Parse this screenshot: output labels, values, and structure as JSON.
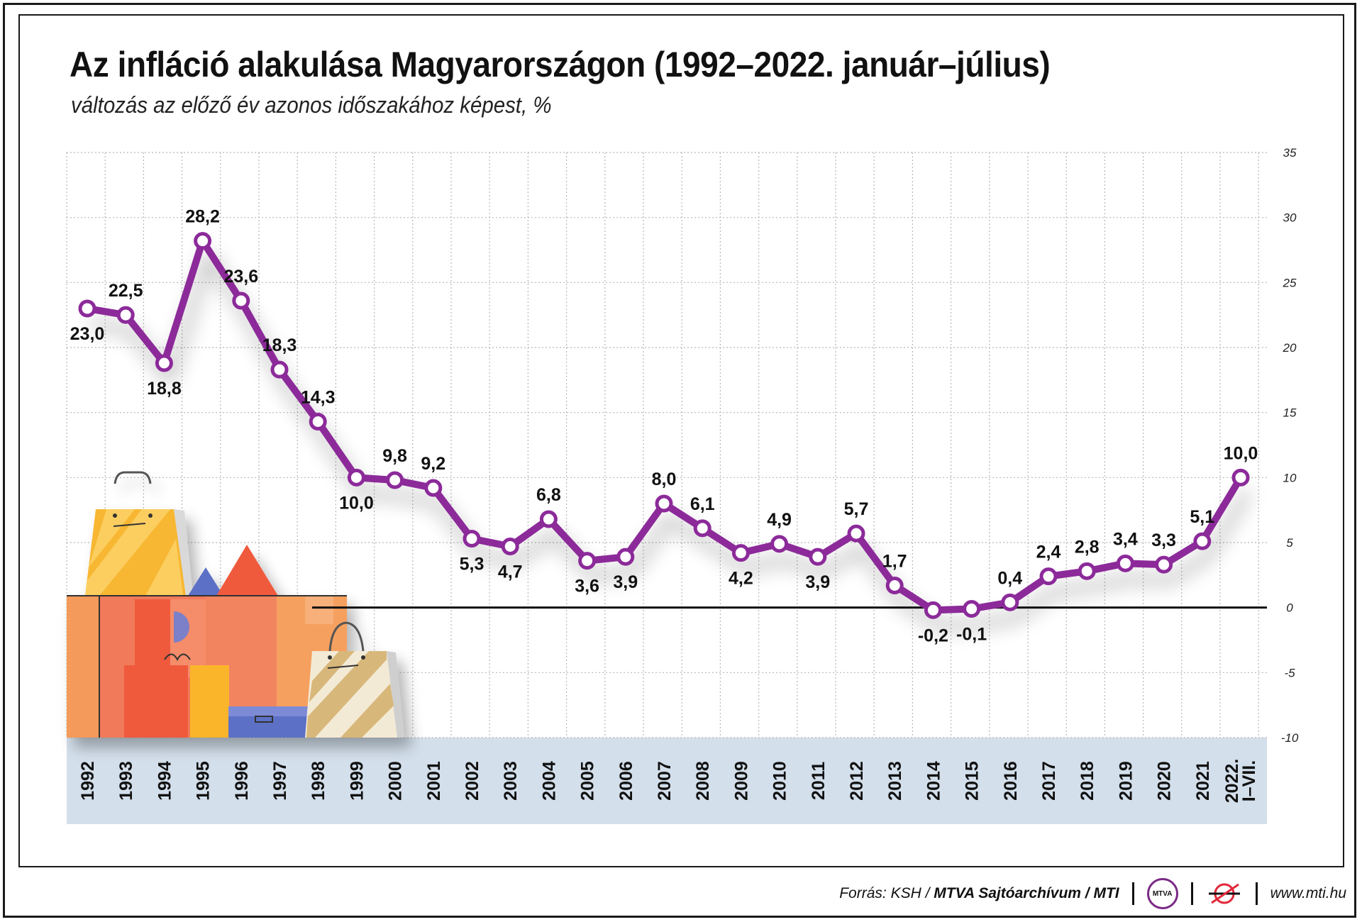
{
  "title": "Az infláció alakulása Magyarországon (1992–2022. január–július)",
  "subtitle": "változás az előző év azonos időszakához képest, %",
  "footer": {
    "source_prefix": "Forrás: KSH / ",
    "source_bold": "MTVA Sajtóarchívum / MTI",
    "logo_text": "MTVA",
    "website": "www.mti.hu"
  },
  "colors": {
    "line": "#8c2a9a",
    "x_band": "#d3dfeb",
    "grid": "#b8b8b8",
    "zero_line": "#111111"
  },
  "chart_data": {
    "type": "line",
    "title": "Az infláció alakulása Magyarországon (1992–2022. január–július)",
    "subtitle": "változás az előző év azonos időszakához képest, %",
    "categories": [
      "1992",
      "1993",
      "1994",
      "1995",
      "1996",
      "1997",
      "1998",
      "1999",
      "2000",
      "2001",
      "2002",
      "2003",
      "2004",
      "2005",
      "2006",
      "2007",
      "2008",
      "2009",
      "2010",
      "2011",
      "2012",
      "2013",
      "2014",
      "2015",
      "2016",
      "2017",
      "2018",
      "2019",
      "2020",
      "2021",
      "2022. I–VII."
    ],
    "category_lines": [
      [
        "1992"
      ],
      [
        "1993"
      ],
      [
        "1994"
      ],
      [
        "1995"
      ],
      [
        "1996"
      ],
      [
        "1997"
      ],
      [
        "1998"
      ],
      [
        "1999"
      ],
      [
        "2000"
      ],
      [
        "2001"
      ],
      [
        "2002"
      ],
      [
        "2003"
      ],
      [
        "2004"
      ],
      [
        "2005"
      ],
      [
        "2006"
      ],
      [
        "2007"
      ],
      [
        "2008"
      ],
      [
        "2009"
      ],
      [
        "2010"
      ],
      [
        "2011"
      ],
      [
        "2012"
      ],
      [
        "2013"
      ],
      [
        "2014"
      ],
      [
        "2015"
      ],
      [
        "2016"
      ],
      [
        "2017"
      ],
      [
        "2018"
      ],
      [
        "2019"
      ],
      [
        "2020"
      ],
      [
        "2021"
      ],
      [
        "2022.",
        "I–VII."
      ]
    ],
    "series": [
      {
        "values": [
          23.0,
          22.5,
          18.8,
          28.2,
          23.6,
          18.3,
          14.3,
          10.0,
          9.8,
          9.2,
          5.3,
          4.7,
          6.8,
          3.6,
          3.9,
          8.0,
          6.1,
          4.2,
          4.9,
          3.9,
          5.7,
          1.7,
          -0.2,
          -0.1,
          0.4,
          2.4,
          2.8,
          3.4,
          3.3,
          5.1,
          10.0
        ],
        "labels": [
          "23,0",
          "22,5",
          "18,8",
          "28,2",
          "23,6",
          "18,3",
          "14,3",
          "10,0",
          "9,8",
          "9,2",
          "5,3",
          "4,7",
          "6,8",
          "3,6",
          "3,9",
          "8,0",
          "6,1",
          "4,2",
          "4,9",
          "3,9",
          "5,7",
          "1,7",
          "-0,2",
          "-0,1",
          "0,4",
          "2,4",
          "2,8",
          "3,4",
          "3,3",
          "5,1",
          "10,0"
        ],
        "label_position": [
          "below",
          "above",
          "below",
          "above",
          "above",
          "above",
          "above",
          "below",
          "above",
          "above",
          "below",
          "below",
          "above",
          "below",
          "below",
          "above",
          "above",
          "below",
          "above",
          "below",
          "above",
          "above",
          "below",
          "below",
          "above",
          "above",
          "above",
          "above",
          "above",
          "above",
          "above"
        ]
      }
    ],
    "y_ticks": [
      35,
      30,
      25,
      20,
      15,
      10,
      5,
      0,
      -5,
      -10
    ],
    "ylim": [
      -10,
      35
    ],
    "y_axis_side": "right",
    "grid": "dotted",
    "legend": "none"
  }
}
